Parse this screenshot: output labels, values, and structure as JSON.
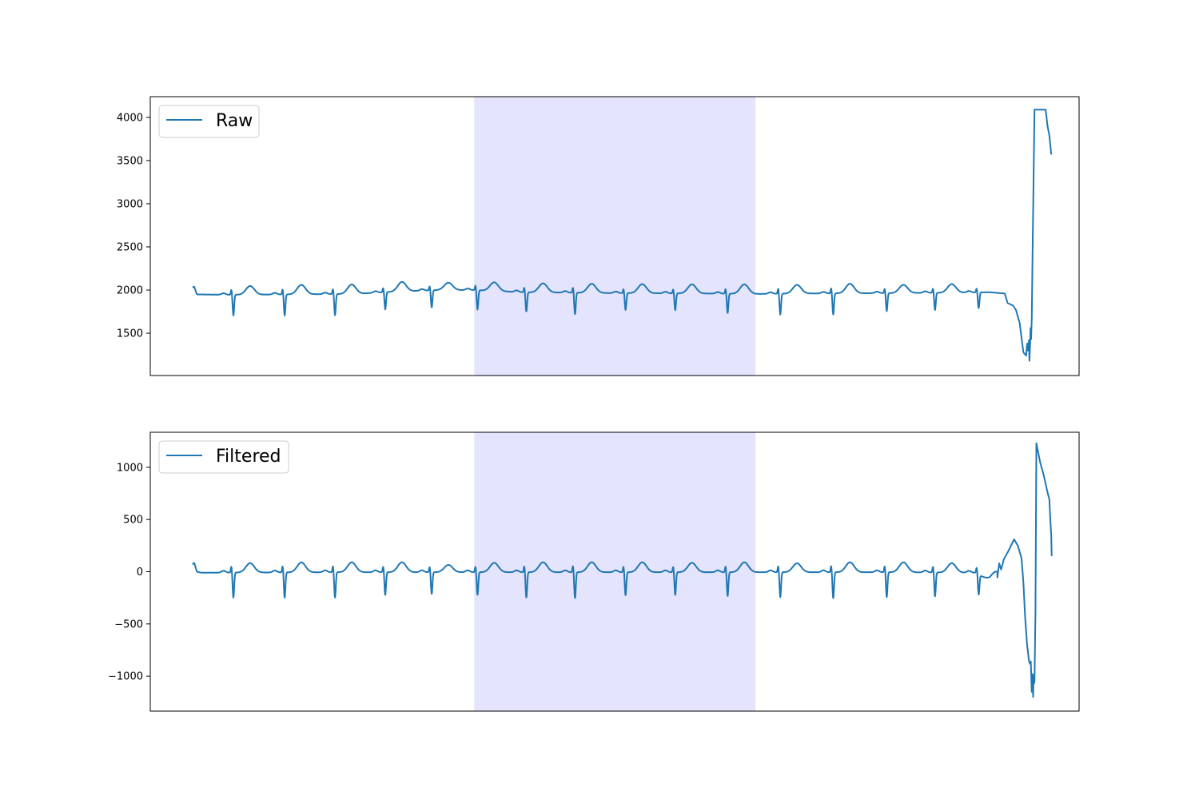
{
  "chart_data": [
    {
      "type": "line",
      "legend_position": "top-left",
      "grid": false,
      "xticks_visible": false,
      "x_range": [
        0,
        1
      ],
      "ylim": [
        1010,
        4240
      ],
      "yticks": [
        1500,
        2000,
        2500,
        3000,
        3500,
        4000
      ],
      "highlight_span": {
        "x_start": 0.3488,
        "x_end": 0.6515,
        "color": "#e4e4fc"
      },
      "series": [
        {
          "name": "Raw",
          "color": "#1f77b4",
          "base": [
            [
              0.0455,
              2030
            ],
            [
              0.0473,
              2040
            ],
            [
              0.0502,
              1950
            ],
            [
              0.08,
              1945
            ],
            [
              0.15,
              1950
            ],
            [
              0.22,
              1955
            ],
            [
              0.26,
              1980
            ],
            [
              0.31,
              2000
            ],
            [
              0.3488,
              2000
            ],
            [
              0.4,
              1975
            ],
            [
              0.5,
              1965
            ],
            [
              0.6,
              1960
            ],
            [
              0.6515,
              1955
            ],
            [
              0.7,
              1960
            ],
            [
              0.8,
              1965
            ],
            [
              0.87,
              1970
            ],
            [
              0.9036,
              1975
            ],
            [
              0.92,
              1960
            ]
          ],
          "beats": [
            {
              "x": 0.0885,
              "amp": 240,
              "t_height": 100
            },
            {
              "x": 0.1437,
              "amp": 245,
              "t_height": 110
            },
            {
              "x": 0.1979,
              "amp": 245,
              "t_height": 110
            },
            {
              "x": 0.252,
              "amp": 200,
              "t_height": 110
            },
            {
              "x": 0.302,
              "amp": 200,
              "t_height": 85
            },
            {
              "x": 0.3513,
              "amp": 225,
              "t_height": 100
            },
            {
              "x": 0.4039,
              "amp": 225,
              "t_height": 105
            },
            {
              "x": 0.4563,
              "amp": 250,
              "t_height": 105
            },
            {
              "x": 0.5107,
              "amp": 195,
              "t_height": 105
            },
            {
              "x": 0.5642,
              "amp": 195,
              "t_height": 105
            },
            {
              "x": 0.6206,
              "amp": 225,
              "t_height": 110
            },
            {
              "x": 0.6773,
              "amp": 245,
              "t_height": 100
            },
            {
              "x": 0.7343,
              "amp": 245,
              "t_height": 110
            },
            {
              "x": 0.7919,
              "amp": 210,
              "t_height": 95
            },
            {
              "x": 0.8439,
              "amp": 200,
              "t_height": 100
            },
            {
              "x": 0.8909,
              "amp": 185,
              "t_height": 0
            }
          ],
          "tail": [
            [
              0.92,
              1960
            ],
            [
              0.923,
              1850
            ],
            [
              0.929,
              1820
            ],
            [
              0.932,
              1770
            ],
            [
              0.936,
              1620
            ],
            [
              0.938,
              1450
            ],
            [
              0.94,
              1280
            ],
            [
              0.943,
              1240
            ],
            [
              0.944,
              1380
            ],
            [
              0.945,
              1300
            ],
            [
              0.946,
              1420
            ],
            [
              0.9465,
              1180
            ],
            [
              0.9472,
              1350
            ],
            [
              0.9477,
              1560
            ],
            [
              0.9483,
              1430
            ],
            [
              0.949,
              1650
            ],
            [
              0.95,
              2500
            ],
            [
              0.952,
              4090
            ],
            [
              0.96,
              4090
            ],
            [
              0.964,
              4090
            ],
            [
              0.966,
              3900
            ],
            [
              0.968,
              3790
            ],
            [
              0.97,
              3570
            ]
          ]
        }
      ]
    },
    {
      "type": "line",
      "legend_position": "top-left",
      "grid": false,
      "xticks_visible": false,
      "x_range": [
        0,
        1
      ],
      "ylim": [
        -1335,
        1335
      ],
      "yticks": [
        -1000,
        -500,
        0,
        500,
        1000
      ],
      "highlight_span": {
        "x_start": 0.3488,
        "x_end": 0.6515,
        "color": "#e4e4fc"
      },
      "series": [
        {
          "name": "Filtered",
          "color": "#1f77b4",
          "base": [
            [
              0.0455,
              70
            ],
            [
              0.0473,
              85
            ],
            [
              0.0502,
              0
            ],
            [
              0.055,
              -10
            ],
            [
              0.1,
              -8
            ],
            [
              0.2,
              -5
            ],
            [
              0.3,
              -5
            ],
            [
              0.4,
              -5
            ],
            [
              0.5,
              -5
            ],
            [
              0.6,
              -5
            ],
            [
              0.7,
              -5
            ],
            [
              0.8,
              -5
            ],
            [
              0.8909,
              -10
            ],
            [
              0.894,
              -40
            ],
            [
              0.9036,
              -75
            ],
            [
              0.912,
              -55
            ]
          ],
          "beats": [
            {
              "x": 0.0885,
              "amp": 240,
              "t_height": 90
            },
            {
              "x": 0.1437,
              "amp": 245,
              "t_height": 95
            },
            {
              "x": 0.1979,
              "amp": 245,
              "t_height": 95
            },
            {
              "x": 0.252,
              "amp": 220,
              "t_height": 95
            },
            {
              "x": 0.302,
              "amp": 210,
              "t_height": 70
            },
            {
              "x": 0.3513,
              "amp": 220,
              "t_height": 90
            },
            {
              "x": 0.4039,
              "amp": 245,
              "t_height": 95
            },
            {
              "x": 0.4563,
              "amp": 250,
              "t_height": 95
            },
            {
              "x": 0.5107,
              "amp": 220,
              "t_height": 95
            },
            {
              "x": 0.5642,
              "amp": 220,
              "t_height": 90
            },
            {
              "x": 0.6206,
              "amp": 230,
              "t_height": 95
            },
            {
              "x": 0.6773,
              "amp": 240,
              "t_height": 85
            },
            {
              "x": 0.7343,
              "amp": 250,
              "t_height": 95
            },
            {
              "x": 0.7919,
              "amp": 240,
              "t_height": 95
            },
            {
              "x": 0.8439,
              "amp": 230,
              "t_height": 90
            },
            {
              "x": 0.8909,
              "amp": 200,
              "t_height": 60
            }
          ],
          "tail": [
            [
              0.912,
              -55
            ],
            [
              0.914,
              80
            ],
            [
              0.916,
              20
            ],
            [
              0.919,
              120
            ],
            [
              0.924,
              200
            ],
            [
              0.93,
              310
            ],
            [
              0.934,
              250
            ],
            [
              0.938,
              130
            ],
            [
              0.94,
              -100
            ],
            [
              0.942,
              -450
            ],
            [
              0.944,
              -700
            ],
            [
              0.946,
              -850
            ],
            [
              0.947,
              -880
            ],
            [
              0.948,
              -860
            ],
            [
              0.949,
              -1150
            ],
            [
              0.95,
              -980
            ],
            [
              0.9505,
              -1200
            ],
            [
              0.951,
              -1000
            ],
            [
              0.9515,
              -1070
            ],
            [
              0.952,
              -1050
            ],
            [
              0.953,
              -400
            ],
            [
              0.954,
              1230
            ],
            [
              0.958,
              1050
            ],
            [
              0.962,
              920
            ],
            [
              0.966,
              760
            ],
            [
              0.968,
              690
            ],
            [
              0.969,
              500
            ],
            [
              0.97,
              350
            ],
            [
              0.9705,
              150
            ]
          ]
        }
      ]
    }
  ]
}
